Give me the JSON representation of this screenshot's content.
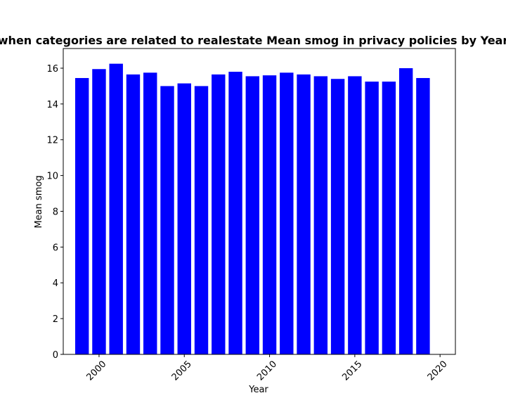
{
  "chart_data": {
    "type": "bar",
    "title": "when categories are related to realestate Mean smog in privacy policies by Year",
    "xlabel": "Year",
    "ylabel": "Mean smog",
    "bar_color": "#0000ff",
    "xlim": [
      1997.9,
      2020.9
    ],
    "ylim": [
      0,
      17.1
    ],
    "x_ticks": [
      2000,
      2005,
      2010,
      2015,
      2020
    ],
    "y_ticks": [
      0,
      2,
      4,
      6,
      8,
      10,
      12,
      14,
      16
    ],
    "grid": false,
    "x": [
      1999,
      2000,
      2001,
      2002,
      2003,
      2004,
      2005,
      2006,
      2007,
      2008,
      2009,
      2010,
      2011,
      2012,
      2013,
      2014,
      2015,
      2016,
      2017,
      2018,
      2019
    ],
    "values": [
      15.45,
      15.95,
      16.25,
      15.65,
      15.75,
      15.0,
      15.15,
      15.0,
      15.65,
      15.8,
      15.55,
      15.6,
      15.75,
      15.65,
      15.55,
      15.4,
      15.55,
      15.25,
      15.25,
      16.0,
      15.45
    ]
  }
}
